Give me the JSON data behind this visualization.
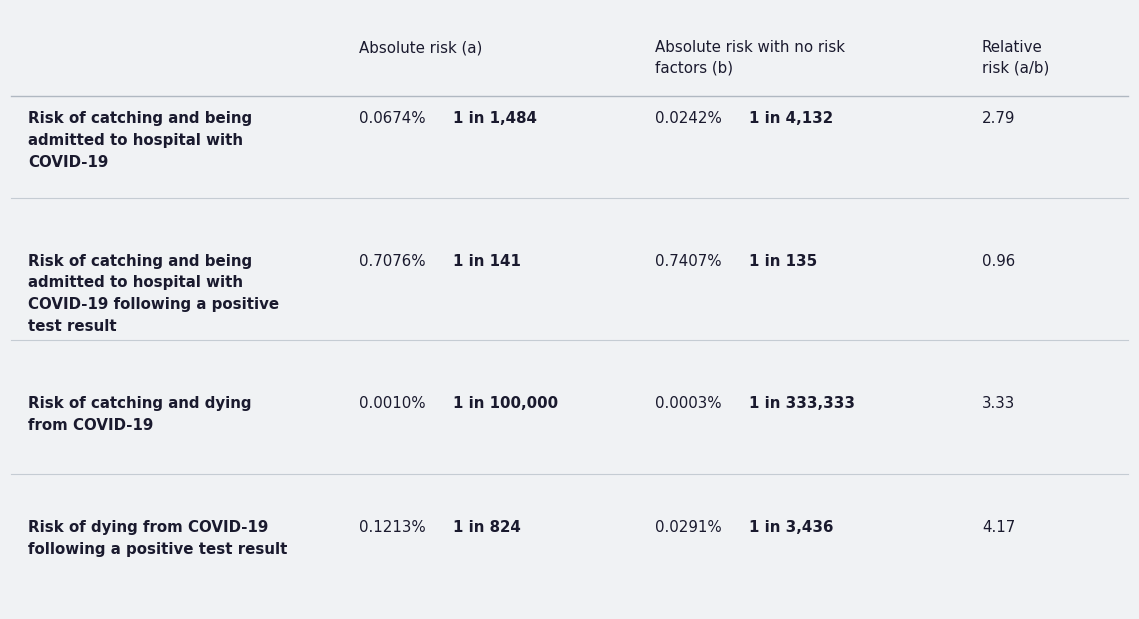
{
  "background_color": "#f0f2f4",
  "header_line_color": "#c8cdd2",
  "row_line_color": "#c8cdd2",
  "text_color": "#1a1a2e",
  "rows": [
    {
      "label": "Risk of catching and being\nadmitted to hospital with\nCOVID-19",
      "abs_pct": "0.0674%",
      "abs_1in": "1 in 1,484",
      "norf_pct": "0.0242%",
      "norf_1in": "1 in 4,132",
      "rel": "2.79",
      "label_lines": 3
    },
    {
      "label": "Risk of catching and being\nadmitted to hospital with\nCOVID-19 following a positive\ntest result",
      "abs_pct": "0.7076%",
      "abs_1in": "1 in 141",
      "norf_pct": "0.7407%",
      "norf_1in": "1 in 135",
      "rel": "0.96",
      "label_lines": 4
    },
    {
      "label": "Risk of catching and dying\nfrom COVID-19",
      "abs_pct": "0.0010%",
      "abs_1in": "1 in 100,000",
      "norf_pct": "0.0003%",
      "norf_1in": "1 in 333,333",
      "rel": "3.33",
      "label_lines": 2
    },
    {
      "label": "Risk of dying from COVID-19\nfollowing a positive test result",
      "abs_pct": "0.1213%",
      "abs_1in": "1 in 824",
      "norf_pct": "0.0291%",
      "norf_1in": "1 in 3,436",
      "rel": "4.17",
      "label_lines": 2
    }
  ],
  "col_label": 0.025,
  "col_abs_pct": 0.315,
  "col_abs_1in": 0.398,
  "col_norf_pct": 0.575,
  "col_norf_1in": 0.658,
  "col_rel": 0.862,
  "font_size": 10.8,
  "line_color_header": "#b0b8c1",
  "line_color_row": "#c5ccd3"
}
